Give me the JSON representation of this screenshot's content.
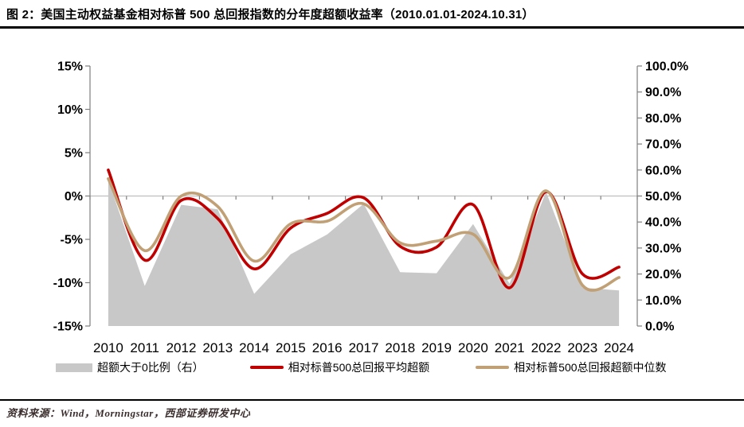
{
  "title": "图 2：美国主动权益基金相对标普 500 总回报指数的分年度超额收益率（2010.01.01-2024.10.31）",
  "source": {
    "text": "资料来源：Wind，Morningstar，西部证券研发中心"
  },
  "colors": {
    "mean_line": "#C00000",
    "median_line": "#C0A074",
    "area": "#C8C8C8",
    "zero_gridline": "#BFBFBF",
    "axis": "#7F7F7F",
    "rule": "#000000"
  },
  "legend": [
    {
      "type": "area",
      "label": "超额大于0比例（右）",
      "color": "#C8C8C8"
    },
    {
      "type": "line",
      "label": "相对标普500总回报平均超额",
      "color": "#C00000"
    },
    {
      "type": "line",
      "label": "相对标普500总回报超额中位数",
      "color": "#C0A074"
    }
  ],
  "chart_data": {
    "type": "combo (area on right axis + smoothed lines on left axis)",
    "title": "图 2：美国主动权益基金相对标普 500 总回报指数的分年度超额收益率（2010.01.01-2024.10.31）",
    "categories": [
      "2010",
      "2011",
      "2012",
      "2013",
      "2014",
      "2015",
      "2016",
      "2017",
      "2018",
      "2019",
      "2020",
      "2021",
      "2022",
      "2023",
      "2024"
    ],
    "left_axis": {
      "range": [
        -15,
        15
      ],
      "ticks": [
        {
          "v": 15,
          "label": "15%"
        },
        {
          "v": 10,
          "label": "10%"
        },
        {
          "v": 5,
          "label": "5%"
        },
        {
          "v": 0,
          "label": "0%"
        },
        {
          "v": -5,
          "label": "-5%"
        },
        {
          "v": -10,
          "label": "-10%"
        },
        {
          "v": -15,
          "label": "-15%"
        }
      ]
    },
    "right_axis": {
      "range": [
        0,
        100
      ],
      "ticks": [
        {
          "v": 100,
          "label": "100.0%"
        },
        {
          "v": 90,
          "label": "90.0%"
        },
        {
          "v": 80,
          "label": "80.0%"
        },
        {
          "v": 70,
          "label": "70.0%"
        },
        {
          "v": 60,
          "label": "60.0%"
        },
        {
          "v": 50,
          "label": "50.0%"
        },
        {
          "v": 40,
          "label": "40.0%"
        },
        {
          "v": 30,
          "label": "30.0%"
        },
        {
          "v": 20,
          "label": "20.0%"
        },
        {
          "v": 10,
          "label": "10.0%"
        },
        {
          "v": 0,
          "label": "0.0%"
        }
      ]
    },
    "grid": "zero line only",
    "legend_position": "bottom",
    "series": [
      {
        "name": "超额大于0比例（右）",
        "type": "area",
        "axis": "right",
        "color": "#C8C8C8",
        "values": [
          56.0,
          15.4,
          46.6,
          44.9,
          12.4,
          27.6,
          35.2,
          47.0,
          20.7,
          20.3,
          39.2,
          16.3,
          51.6,
          14.7,
          13.7
        ]
      },
      {
        "name": "相对标普500总回报平均超额",
        "type": "line",
        "axis": "left",
        "color": "#C00000",
        "values": [
          3.0,
          -7.4,
          -0.5,
          -2.6,
          -8.4,
          -3.7,
          -2.0,
          -0.2,
          -5.8,
          -5.9,
          -1.0,
          -10.6,
          0.5,
          -9.0,
          -8.2
        ]
      },
      {
        "name": "相对标普500总回报超额中位数",
        "type": "line",
        "axis": "left",
        "color": "#C0A074",
        "values": [
          2.0,
          -6.3,
          0.0,
          -1.2,
          -7.5,
          -3.2,
          -2.9,
          -0.9,
          -5.4,
          -5.2,
          -4.4,
          -9.4,
          0.6,
          -10.3,
          -9.4
        ]
      }
    ]
  }
}
